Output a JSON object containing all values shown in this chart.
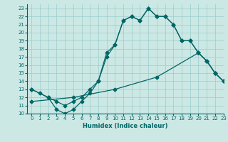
{
  "xlabel": "Humidex (Indice chaleur)",
  "bg_color": "#cce8e4",
  "grid_color": "#99cccc",
  "line_color": "#006666",
  "line1_x": [
    0,
    1,
    2,
    3,
    4,
    5,
    6,
    7,
    8,
    9,
    10,
    11,
    12,
    13,
    14,
    15,
    16,
    17,
    18,
    19,
    20,
    21,
    22,
    23
  ],
  "line1_y": [
    13.0,
    12.5,
    12.0,
    11.5,
    11.0,
    11.5,
    12.0,
    13.0,
    14.0,
    17.5,
    18.5,
    21.5,
    22.0,
    21.5,
    23.0,
    22.0,
    22.0,
    21.0,
    19.0,
    19.0,
    17.5,
    16.5,
    15.0,
    14.0
  ],
  "line2_x": [
    0,
    2,
    3,
    4,
    5,
    6,
    7,
    8,
    9,
    10,
    11,
    12,
    13,
    14,
    15,
    16,
    17,
    18,
    19,
    20,
    21,
    22,
    23
  ],
  "line2_y": [
    13.0,
    12.0,
    10.5,
    10.0,
    10.5,
    11.5,
    12.5,
    14.0,
    17.0,
    18.5,
    21.5,
    22.0,
    21.5,
    23.0,
    22.0,
    22.0,
    21.0,
    19.0,
    19.0,
    17.5,
    16.5,
    15.0,
    14.0
  ],
  "line3_x": [
    0,
    5,
    10,
    15,
    20,
    21,
    22,
    23
  ],
  "line3_y": [
    11.5,
    12.0,
    13.0,
    14.5,
    17.5,
    16.5,
    15.0,
    14.0
  ],
  "xlim": [
    -0.5,
    23
  ],
  "ylim": [
    10,
    23.5
  ],
  "xticks": [
    0,
    1,
    2,
    3,
    4,
    5,
    6,
    7,
    8,
    9,
    10,
    11,
    12,
    13,
    14,
    15,
    16,
    17,
    18,
    19,
    20,
    21,
    22,
    23
  ],
  "yticks": [
    10,
    11,
    12,
    13,
    14,
    15,
    16,
    17,
    18,
    19,
    20,
    21,
    22,
    23
  ]
}
